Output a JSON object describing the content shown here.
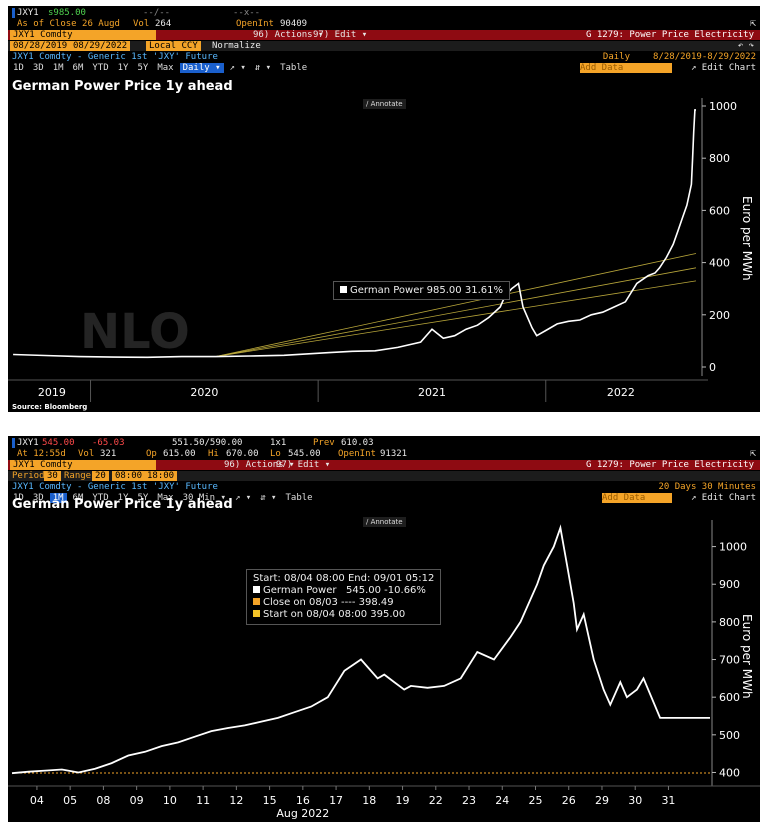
{
  "panel1": {
    "header": {
      "ticker": "JXY1",
      "last": "s985.00",
      "blank1": "--/--",
      "blank2": "--x--",
      "asof": "As of Close 26 Augd",
      "vol_label": "Vol",
      "vol": "264",
      "oi_label": "OpenInt",
      "oi": "90409"
    },
    "menubar": {
      "security": "JXY1 Comdty",
      "actions": "96) Actions ▾",
      "edit": "97) Edit ▾",
      "function": "G 1279: Power Price Electricity"
    },
    "range": {
      "start": "08/28/2019",
      "end": "08/29/2022",
      "currency": "Local CCY",
      "normalize": "Normalize"
    },
    "desc": {
      "text": "JXY1 Comdty - Generic 1st 'JXY' Future",
      "period": "Daily",
      "dates": "8/28/2019-8/29/2022"
    },
    "toolbar": [
      "1D",
      "3D",
      "1M",
      "6M",
      "YTD",
      "1Y",
      "5Y",
      "Max",
      "Daily ▾",
      "↗ ▾",
      "⇵ ▾",
      "Table"
    ],
    "add_data": "Add Data",
    "edit_chart": "↗ Edit Chart",
    "annotate": "∕ Annotate",
    "title": "German Power Price 1y ahead",
    "ylabel": "Euro per MWh",
    "legend": {
      "name": "German Power",
      "value": "985.00",
      "change": "31.61%"
    },
    "watermark": "NLO",
    "source": "Source: Bloomberg"
  },
  "panel2": {
    "header": {
      "ticker": "JXY1",
      "last": "545.00",
      "change": "-65.03",
      "range": "551.50/590.00",
      "size": "1x1",
      "prev_label": "Prev",
      "prev": "610.03",
      "time": "At 12:55d",
      "vol_label": "Vol",
      "vol": "321",
      "op_label": "Op",
      "op": "615.00",
      "hi_label": "Hi",
      "hi": "670.00",
      "lo_label": "Lo",
      "lo": "545.00",
      "oi_label": "OpenInt",
      "oi": "91321"
    },
    "menubar": {
      "security": "JXY1 Comdty",
      "actions": "96) Actions ▾",
      "edit": "97) Edit ▾",
      "function": "G 1279: Power Price Electricity"
    },
    "period": {
      "label": "Period",
      "d": "30",
      "range_label": "Range",
      "r": "20",
      "from": "08:00",
      "to": "18:00"
    },
    "desc": {
      "text": "JXY1 Comdty - Generic 1st 'JXY' Future",
      "period": "20 Days  30 Minutes"
    },
    "toolbar": [
      "1D",
      "3D",
      "1M",
      "6M",
      "YTD",
      "1Y",
      "5Y",
      "Max",
      "30 Min ▾",
      "↗ ▾",
      "⇵ ▾",
      "Table"
    ],
    "add_data": "Add Data",
    "edit_chart": "↗ Edit Chart",
    "annotate": "∕ Annotate",
    "title": "German Power Price 1y ahead",
    "ylabel": "Euro per MWh",
    "legend": {
      "line1": "Start: 08/04 08:00  End: 09/01 05:12",
      "line2_name": "German Power",
      "line2_value": "545.00  -10.66%",
      "line3": "Close on 08/03 ----   398.49",
      "line4": "Start on 08/04 08:00  395.00"
    },
    "month_label": "Aug 2022"
  },
  "chart_data": [
    {
      "type": "line",
      "title": "German Power Price 1y ahead",
      "ylabel": "Euro per MWh",
      "ylim": [
        0,
        1000
      ],
      "yticks": [
        0,
        200,
        400,
        600,
        800,
        1000
      ],
      "xticks": [
        "2019",
        "2020",
        "2021",
        "2022"
      ],
      "x_range": [
        2019.655,
        2022.66
      ],
      "series": [
        {
          "name": "German Power",
          "x": [
            2019.66,
            2019.8,
            2019.95,
            2020.1,
            2020.25,
            2020.4,
            2020.55,
            2020.7,
            2020.85,
            2020.95,
            2021.05,
            2021.15,
            2021.25,
            2021.35,
            2021.45,
            2021.5,
            2021.55,
            2021.6,
            2021.65,
            2021.7,
            2021.75,
            2021.8,
            2021.82,
            2021.85,
            2021.88,
            2021.9,
            2021.94,
            2021.96,
            2022.0,
            2022.05,
            2022.1,
            2022.15,
            2022.2,
            2022.25,
            2022.3,
            2022.35,
            2022.4,
            2022.45,
            2022.48,
            2022.5,
            2022.53,
            2022.56,
            2022.58,
            2022.6,
            2022.62,
            2022.64,
            2022.645,
            2022.65,
            2022.655,
            2022.66
          ],
          "y": [
            48,
            44,
            40,
            38,
            37,
            40,
            40,
            42,
            45,
            50,
            55,
            60,
            62,
            75,
            95,
            145,
            110,
            120,
            145,
            160,
            190,
            230,
            270,
            300,
            320,
            230,
            150,
            120,
            140,
            165,
            175,
            180,
            200,
            210,
            230,
            250,
            320,
            350,
            360,
            380,
            420,
            470,
            520,
            570,
            620,
            700,
            800,
            900,
            985,
            985
          ]
        }
      ],
      "trendlines": [
        {
          "x": [
            2020.55,
            2022.66
          ],
          "y": [
            40,
            435
          ]
        },
        {
          "x": [
            2020.55,
            2022.66
          ],
          "y": [
            40,
            380
          ]
        },
        {
          "x": [
            2020.55,
            2022.66
          ],
          "y": [
            40,
            330
          ]
        }
      ]
    },
    {
      "type": "line",
      "title": "German Power Price 1y ahead",
      "ylabel": "Euro per MWh",
      "ylim": [
        380,
        1060
      ],
      "yticks": [
        400,
        500,
        600,
        700,
        800,
        900,
        1000
      ],
      "xticks": [
        "04",
        "05",
        "08",
        "09",
        "10",
        "11",
        "12",
        "15",
        "16",
        "17",
        "18",
        "19",
        "22",
        "23",
        "24",
        "25",
        "26",
        "29",
        "30",
        "31"
      ],
      "x_range": [
        0,
        21
      ],
      "series": [
        {
          "name": "German Power",
          "x": [
            0,
            0.5,
            1,
            1.5,
            2,
            2.5,
            3,
            3.5,
            4,
            4.5,
            5,
            5.5,
            6,
            6.5,
            7,
            7.5,
            8,
            8.5,
            9,
            9.5,
            10,
            10.5,
            11,
            11.2,
            11.5,
            11.8,
            12,
            12.5,
            13,
            13.5,
            14,
            14.5,
            15,
            15.3,
            15.5,
            15.8,
            16,
            16.3,
            16.5,
            16.7,
            16.9,
            17,
            17.2,
            17.5,
            17.8,
            18,
            18.3,
            18.5,
            18.8,
            19,
            19.5,
            20,
            21
          ],
          "y": [
            398,
            402,
            405,
            408,
            400,
            410,
            425,
            445,
            455,
            470,
            480,
            495,
            510,
            518,
            525,
            535,
            545,
            560,
            575,
            600,
            670,
            700,
            650,
            660,
            640,
            620,
            630,
            625,
            630,
            650,
            720,
            700,
            760,
            800,
            840,
            900,
            950,
            1000,
            1050,
            950,
            850,
            780,
            820,
            700,
            620,
            580,
            640,
            600,
            620,
            650,
            545,
            545,
            545
          ]
        }
      ],
      "reference_line": 398.49
    }
  ]
}
